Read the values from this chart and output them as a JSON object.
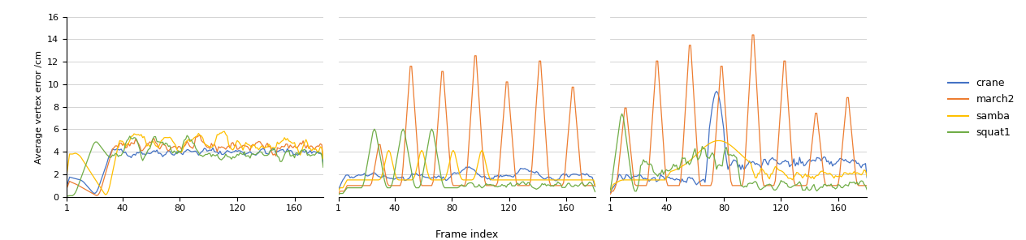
{
  "colors": {
    "crane": "#4472c4",
    "march2": "#ed7d31",
    "samba": "#ffc000",
    "squat1": "#70ad47"
  },
  "labels": [
    "crane",
    "march2",
    "samba",
    "squat1"
  ],
  "ylabel": "Average vertex error /cm",
  "xlabel": "Frame index",
  "ylim": [
    0,
    16
  ],
  "yticks": [
    0,
    2,
    4,
    6,
    8,
    10,
    12,
    14,
    16
  ],
  "xticks": [
    1,
    40,
    80,
    120,
    160
  ],
  "n_frames": 180,
  "background": "#ffffff"
}
